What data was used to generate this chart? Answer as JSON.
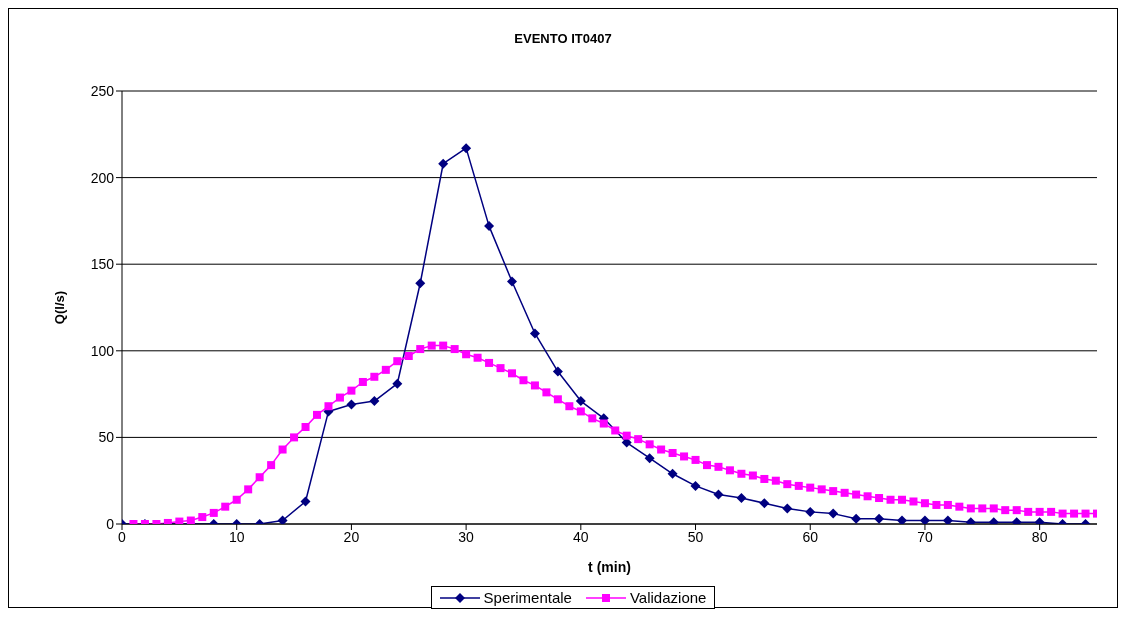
{
  "chart_data": {
    "type": "line",
    "title": "EVENTO IT0407",
    "xlabel": "t (min)",
    "ylabel": "Q(l/s)",
    "xlim": [
      0,
      85
    ],
    "xticks": [
      0,
      10,
      20,
      30,
      40,
      50,
      60,
      70,
      80
    ],
    "ylim": [
      0,
      250
    ],
    "yticks": [
      0,
      50,
      100,
      150,
      200,
      250
    ],
    "grid": "y",
    "legend": "bottom",
    "line_style": "solid",
    "series": [
      {
        "name": "Sperimentale",
        "color": "#000080",
        "marker": "diamond",
        "x": [
          0,
          2,
          4,
          6,
          8,
          10,
          12,
          14,
          16,
          18,
          20,
          22,
          24,
          26,
          28,
          30,
          32,
          34,
          36,
          38,
          40,
          42,
          44,
          46,
          48,
          50,
          52,
          54,
          56,
          58,
          60,
          62,
          64,
          66,
          68,
          70,
          72,
          74,
          76,
          78,
          80,
          82,
          84
        ],
        "values": [
          0,
          0,
          0,
          0,
          0,
          0,
          0,
          2,
          13,
          65,
          69,
          71,
          81,
          139,
          208,
          217,
          172,
          140,
          110,
          88,
          71,
          61,
          47,
          38,
          29,
          22,
          17,
          15,
          12,
          9,
          7,
          6,
          3,
          3,
          2,
          2,
          2,
          1,
          1,
          1,
          1,
          0,
          0
        ]
      },
      {
        "name": "Validazione",
        "color": "#ff00ff",
        "marker": "square",
        "x": [
          1,
          2,
          3,
          4,
          5,
          6,
          7,
          8,
          9,
          10,
          11,
          12,
          13,
          14,
          15,
          16,
          17,
          18,
          19,
          20,
          21,
          22,
          23,
          24,
          25,
          26,
          27,
          28,
          29,
          30,
          31,
          32,
          33,
          34,
          35,
          36,
          37,
          38,
          39,
          40,
          41,
          42,
          43,
          44,
          45,
          46,
          47,
          48,
          49,
          50,
          51,
          52,
          53,
          54,
          55,
          56,
          57,
          58,
          59,
          60,
          61,
          62,
          63,
          64,
          65,
          66,
          67,
          68,
          69,
          70,
          71,
          72,
          73,
          74,
          75,
          76,
          77,
          78,
          79,
          80,
          81,
          82,
          83,
          84,
          85
        ],
        "values": [
          0,
          0,
          0,
          0.6,
          1.4,
          2,
          4,
          6.4,
          10,
          14,
          20,
          27,
          34,
          43,
          50,
          56,
          63,
          68,
          73,
          77,
          82,
          85,
          89,
          94,
          97,
          101,
          103,
          103,
          101,
          98,
          96,
          93,
          90,
          87,
          83,
          80,
          76,
          72,
          68,
          65,
          61,
          58,
          54,
          51,
          49,
          46,
          43,
          41,
          39,
          37,
          34,
          33,
          31,
          29,
          28,
          26,
          25,
          23,
          22,
          21,
          20,
          19,
          18,
          17,
          16,
          15,
          14,
          14,
          13,
          12,
          11,
          11,
          10,
          9,
          9,
          9,
          8,
          8,
          7,
          7,
          7,
          6,
          6,
          6,
          6
        ]
      }
    ]
  }
}
